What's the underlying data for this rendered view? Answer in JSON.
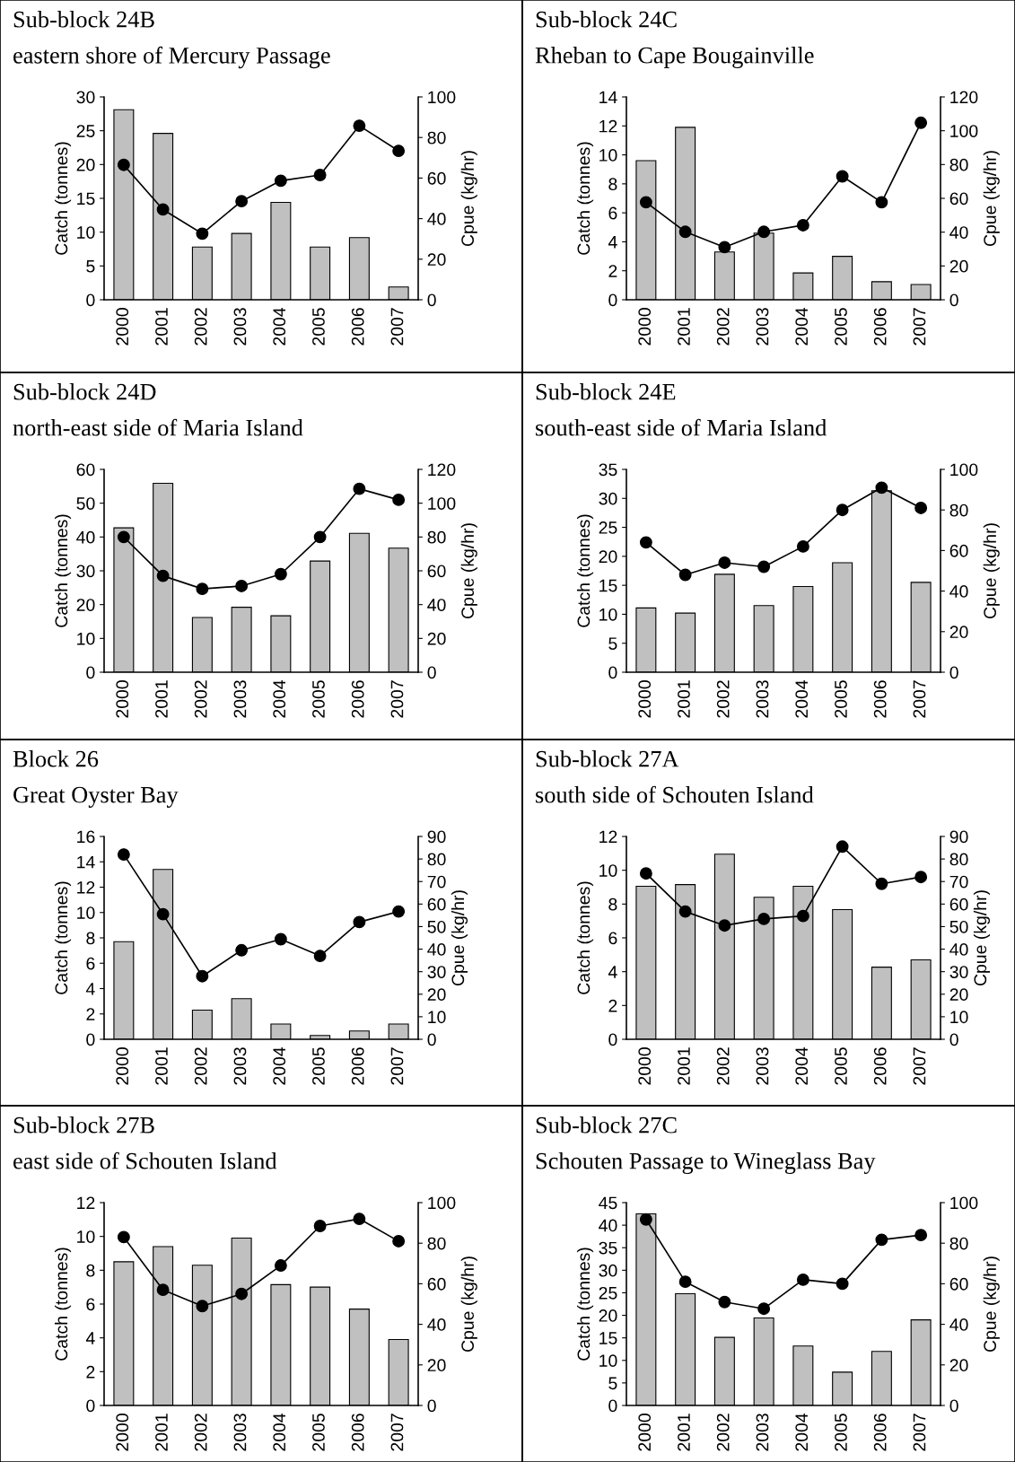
{
  "chart_data": [
    {
      "type": "bar",
      "title": "Sub-block 24B",
      "subtitle": "eastern shore of Mercury Passage",
      "categories": [
        "2000",
        "2001",
        "2002",
        "2003",
        "2004",
        "2005",
        "2006",
        "2007"
      ],
      "ylabel": "Catch (tonnes)",
      "y2label": "Cpue (kg/hr)",
      "ylim": [
        0,
        30
      ],
      "yticks": [
        0,
        5,
        10,
        15,
        20,
        25,
        30
      ],
      "y2lim": [
        0,
        100
      ],
      "y2ticks": [
        0,
        20,
        40,
        60,
        80,
        100
      ],
      "legend": false,
      "grid": false,
      "series": [
        {
          "color": "#c0c0c0",
          "values": [
            28.1,
            24.6,
            7.8,
            9.8,
            14.4,
            7.8,
            9.2,
            1.9
          ]
        },
        {
          "type": "line",
          "axis": "y2",
          "color": "#000000",
          "marker": "circle",
          "values": [
            66.5,
            44.5,
            32.6,
            48.6,
            58.7,
            61.5,
            85.8,
            73.4
          ]
        }
      ]
    },
    {
      "type": "bar",
      "title": "Sub-block 24C",
      "subtitle": "Rheban to Cape Bougainville",
      "categories": [
        "2000",
        "2001",
        "2002",
        "2003",
        "2004",
        "2005",
        "2006",
        "2007"
      ],
      "ylabel": "Catch (tonnes)",
      "y2label": "Cpue (kg/hr)",
      "ylim": [
        0,
        14
      ],
      "yticks": [
        0,
        2,
        4,
        6,
        8,
        10,
        12,
        14
      ],
      "y2lim": [
        0,
        120
      ],
      "y2ticks": [
        0,
        20,
        40,
        60,
        80,
        100,
        120
      ],
      "legend": false,
      "grid": false,
      "series": [
        {
          "color": "#c0c0c0",
          "values": [
            9.6,
            11.9,
            3.3,
            4.6,
            1.85,
            3.0,
            1.25,
            1.05
          ]
        },
        {
          "type": "line",
          "axis": "y2",
          "color": "#000000",
          "marker": "circle",
          "values": [
            57.7,
            40.2,
            31.1,
            40.2,
            44.1,
            73,
            57.7,
            104.7
          ]
        }
      ]
    },
    {
      "type": "bar",
      "title": "Sub-block 24D",
      "subtitle": "north-east side of Maria Island",
      "categories": [
        "2000",
        "2001",
        "2002",
        "2003",
        "2004",
        "2005",
        "2006",
        "2007"
      ],
      "ylabel": "Catch (tonnes)",
      "y2label": "Cpue (kg/hr)",
      "ylim": [
        0,
        60
      ],
      "yticks": [
        0,
        10,
        20,
        30,
        40,
        50,
        60
      ],
      "y2lim": [
        0,
        120
      ],
      "y2ticks": [
        0,
        20,
        40,
        60,
        80,
        100,
        120
      ],
      "legend": false,
      "grid": false,
      "series": [
        {
          "color": "#c0c0c0",
          "values": [
            42.7,
            55.9,
            16.2,
            19.2,
            16.7,
            32.9,
            41.1,
            36.7
          ]
        },
        {
          "type": "line",
          "axis": "y2",
          "color": "#000000",
          "marker": "circle",
          "values": [
            80,
            57,
            49.3,
            51,
            58,
            80,
            108.5,
            102
          ]
        }
      ]
    },
    {
      "type": "bar",
      "title": "Sub-block 24E",
      "subtitle": "south-east side of Maria Island",
      "categories": [
        "2000",
        "2001",
        "2002",
        "2003",
        "2004",
        "2005",
        "2006",
        "2007"
      ],
      "ylabel": "Catch (tonnes)",
      "y2label": "Cpue (kg/hr)",
      "ylim": [
        0,
        35
      ],
      "yticks": [
        0,
        5,
        10,
        15,
        20,
        25,
        30,
        35
      ],
      "y2lim": [
        0,
        100
      ],
      "y2ticks": [
        0,
        20,
        40,
        60,
        80,
        100
      ],
      "legend": false,
      "grid": false,
      "series": [
        {
          "color": "#c0c0c0",
          "values": [
            11.1,
            10.2,
            16.9,
            11.5,
            14.8,
            18.9,
            31.3,
            15.5
          ]
        },
        {
          "type": "line",
          "axis": "y2",
          "color": "#000000",
          "marker": "circle",
          "values": [
            64,
            48,
            54,
            52,
            62,
            80,
            91,
            81
          ]
        }
      ]
    },
    {
      "type": "bar",
      "title": "Block 26",
      "subtitle": "Great Oyster Bay",
      "categories": [
        "2000",
        "2001",
        "2002",
        "2003",
        "2004",
        "2005",
        "2006",
        "2007"
      ],
      "ylabel": "Catch (tonnes)",
      "y2label": "Cpue (kg/hr)",
      "ylim": [
        0,
        16
      ],
      "yticks": [
        0,
        2,
        4,
        6,
        8,
        10,
        12,
        14,
        16
      ],
      "y2lim": [
        0,
        90
      ],
      "y2ticks": [
        0,
        10,
        20,
        30,
        40,
        50,
        60,
        70,
        80,
        90
      ],
      "legend": false,
      "grid": false,
      "series": [
        {
          "color": "#c0c0c0",
          "values": [
            7.7,
            13.4,
            2.3,
            3.2,
            1.2,
            0.3,
            0.65,
            1.2
          ]
        },
        {
          "type": "line",
          "axis": "y2",
          "color": "#000000",
          "marker": "circle",
          "values": [
            82,
            55.5,
            28,
            39.5,
            44.4,
            37,
            52,
            56.7
          ]
        }
      ]
    },
    {
      "type": "bar",
      "title": "Sub-block 27A",
      "subtitle": "south side of Schouten Island",
      "categories": [
        "2000",
        "2001",
        "2002",
        "2003",
        "2004",
        "2005",
        "2006",
        "2007"
      ],
      "ylabel": "Catch (tonnes)",
      "y2label": "Cpue (kg/hr)",
      "ylim": [
        0,
        12
      ],
      "yticks": [
        0,
        2,
        4,
        6,
        8,
        10,
        12
      ],
      "y2lim": [
        0,
        90
      ],
      "y2ticks": [
        0,
        10,
        20,
        30,
        40,
        50,
        60,
        70,
        80,
        90
      ],
      "legend": false,
      "grid": false,
      "series": [
        {
          "color": "#c0c0c0",
          "values": [
            9.05,
            9.15,
            10.95,
            8.4,
            9.05,
            7.67,
            4.27,
            4.7
          ]
        },
        {
          "type": "line",
          "axis": "y2",
          "color": "#000000",
          "marker": "circle",
          "values": [
            73.6,
            56.7,
            50.5,
            53.4,
            54.7,
            85.5,
            69,
            72
          ]
        }
      ]
    },
    {
      "type": "bar",
      "title": "Sub-block 27B",
      "subtitle": "east side of Schouten Island",
      "categories": [
        "2000",
        "2001",
        "2002",
        "2003",
        "2004",
        "2005",
        "2006",
        "2007"
      ],
      "ylabel": "Catch (tonnes)",
      "y2label": "Cpue (kg/hr)",
      "ylim": [
        0,
        12
      ],
      "yticks": [
        0,
        2,
        4,
        6,
        8,
        10,
        12
      ],
      "y2lim": [
        0,
        100
      ],
      "y2ticks": [
        0,
        20,
        40,
        60,
        80,
        100
      ],
      "legend": false,
      "grid": false,
      "series": [
        {
          "color": "#c0c0c0",
          "values": [
            8.5,
            9.4,
            8.3,
            9.9,
            7.15,
            7.0,
            5.7,
            3.9
          ]
        },
        {
          "type": "line",
          "axis": "y2",
          "color": "#000000",
          "marker": "circle",
          "values": [
            83,
            57,
            49,
            55,
            69,
            88.5,
            92,
            81
          ]
        }
      ]
    },
    {
      "type": "bar",
      "title": "Sub-block 27C",
      "subtitle": "Schouten Passage to Wineglass Bay",
      "categories": [
        "2000",
        "2001",
        "2002",
        "2003",
        "2004",
        "2005",
        "2006",
        "2007"
      ],
      "ylabel": "Catch (tonnes)",
      "y2label": "Cpue (kg/hr)",
      "ylim": [
        0,
        45
      ],
      "yticks": [
        0,
        5,
        10,
        15,
        20,
        25,
        30,
        35,
        40,
        45
      ],
      "y2lim": [
        0,
        100
      ],
      "y2ticks": [
        0,
        20,
        40,
        60,
        80,
        100
      ],
      "legend": false,
      "grid": false,
      "series": [
        {
          "color": "#c0c0c0",
          "values": [
            42.5,
            24.8,
            15.1,
            19.4,
            13.2,
            7.4,
            12,
            19
          ]
        },
        {
          "type": "line",
          "axis": "y2",
          "color": "#000000",
          "marker": "circle",
          "values": [
            91.7,
            61,
            51,
            47.7,
            62,
            60,
            81.7,
            84
          ]
        }
      ]
    }
  ]
}
